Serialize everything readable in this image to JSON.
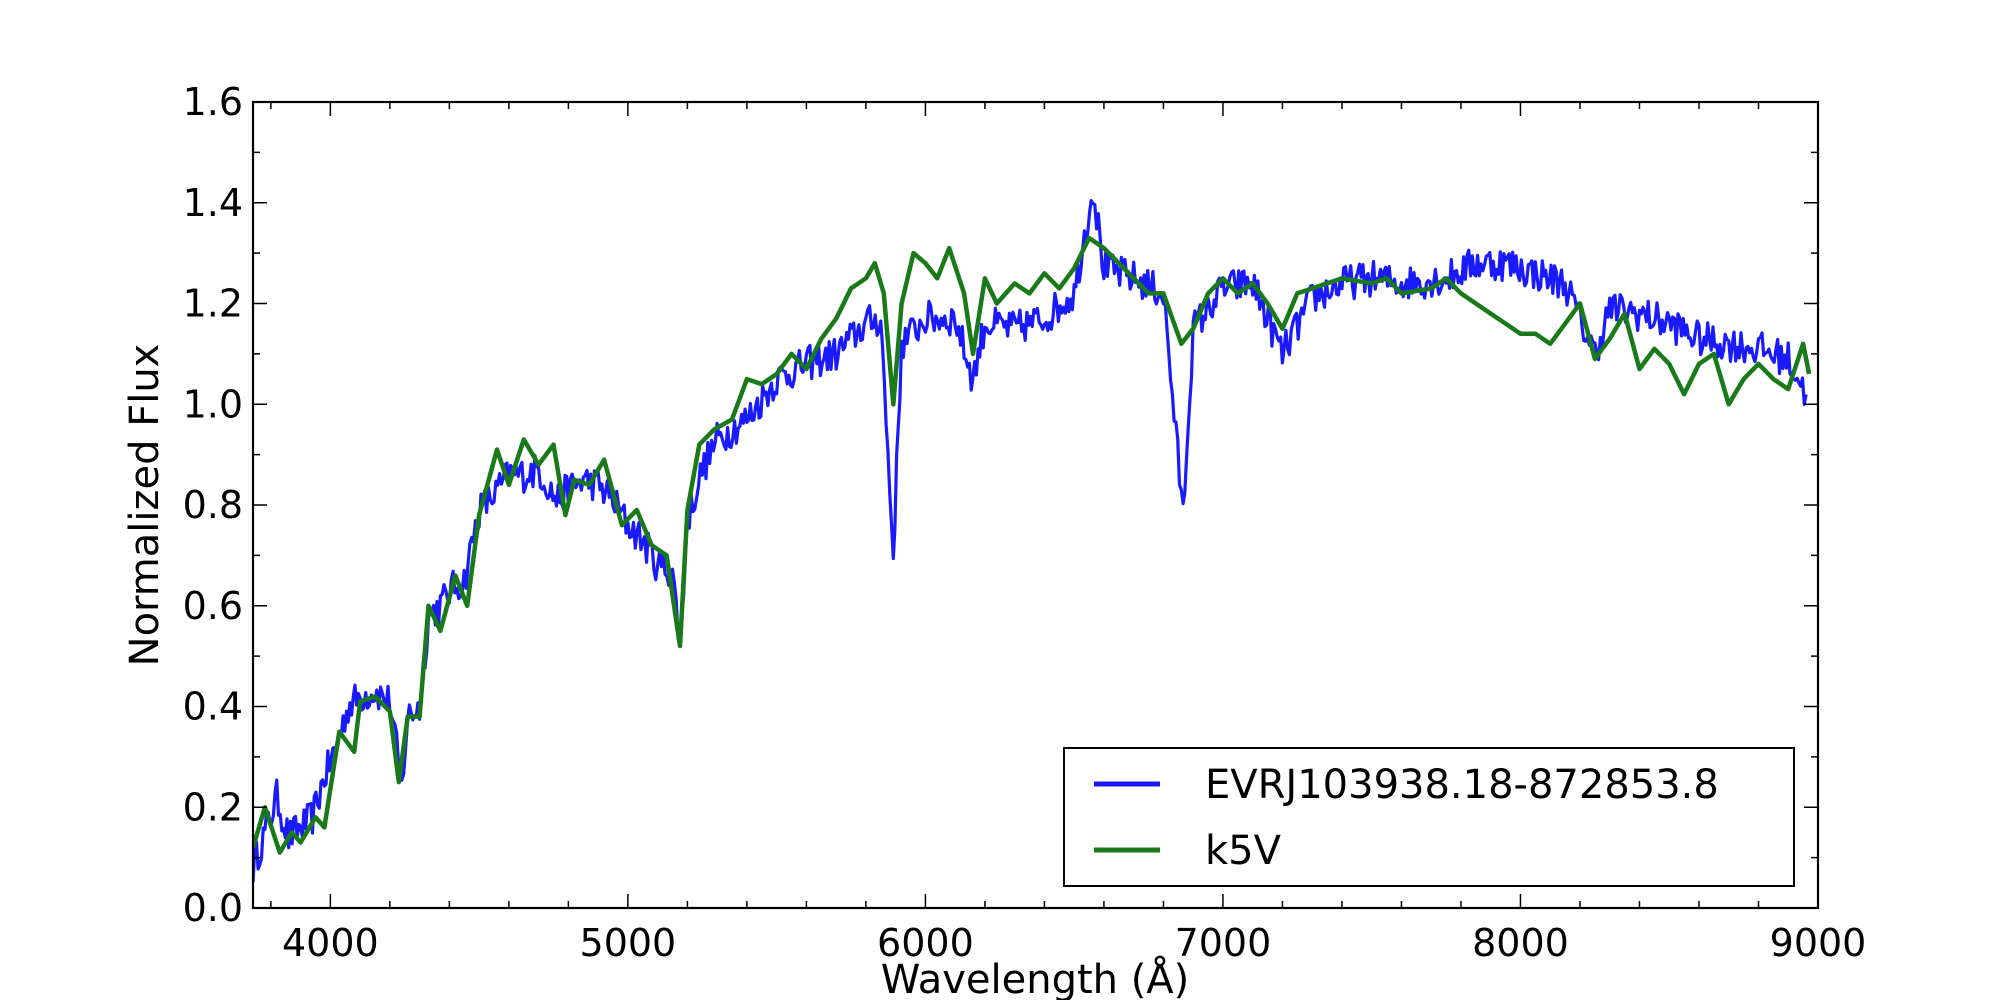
{
  "chart_data": {
    "type": "line",
    "title": "",
    "xlabel": "Wavelength (Å)",
    "ylabel": "Normalized Flux",
    "xlim": [
      3740,
      9000
    ],
    "ylim": [
      0.0,
      1.6
    ],
    "xticks": [
      4000,
      5000,
      6000,
      7000,
      8000,
      9000
    ],
    "yticks": [
      0.0,
      0.2,
      0.4,
      0.6,
      0.8,
      1.0,
      1.2,
      1.4,
      1.6
    ],
    "grid": false,
    "legend_position": "bottom-right",
    "series": [
      {
        "name": "EVRJ103938.18-872853.8",
        "color": "#1a1aff",
        "noise": true,
        "points": [
          [
            3740,
            0.08
          ],
          [
            3780,
            0.15
          ],
          [
            3820,
            0.22
          ],
          [
            3860,
            0.14
          ],
          [
            3900,
            0.16
          ],
          [
            3940,
            0.18
          ],
          [
            3980,
            0.26
          ],
          [
            4020,
            0.32
          ],
          [
            4060,
            0.4
          ],
          [
            4100,
            0.42
          ],
          [
            4150,
            0.43
          ],
          [
            4200,
            0.41
          ],
          [
            4240,
            0.24
          ],
          [
            4260,
            0.38
          ],
          [
            4300,
            0.4
          ],
          [
            4330,
            0.58
          ],
          [
            4370,
            0.6
          ],
          [
            4400,
            0.63
          ],
          [
            4450,
            0.65
          ],
          [
            4500,
            0.79
          ],
          [
            4550,
            0.82
          ],
          [
            4600,
            0.86
          ],
          [
            4650,
            0.86
          ],
          [
            4700,
            0.87
          ],
          [
            4760,
            0.81
          ],
          [
            4800,
            0.83
          ],
          [
            4850,
            0.85
          ],
          [
            4900,
            0.84
          ],
          [
            4950,
            0.81
          ],
          [
            5000,
            0.76
          ],
          [
            5050,
            0.73
          ],
          [
            5100,
            0.68
          ],
          [
            5150,
            0.67
          ],
          [
            5175,
            0.52
          ],
          [
            5200,
            0.77
          ],
          [
            5250,
            0.87
          ],
          [
            5300,
            0.93
          ],
          [
            5400,
            0.97
          ],
          [
            5500,
            1.05
          ],
          [
            5600,
            1.08
          ],
          [
            5700,
            1.1
          ],
          [
            5800,
            1.16
          ],
          [
            5850,
            1.17
          ],
          [
            5892,
            0.7
          ],
          [
            5920,
            1.12
          ],
          [
            6000,
            1.17
          ],
          [
            6100,
            1.17
          ],
          [
            6160,
            1.05
          ],
          [
            6200,
            1.16
          ],
          [
            6300,
            1.15
          ],
          [
            6400,
            1.17
          ],
          [
            6500,
            1.22
          ],
          [
            6563,
            1.43
          ],
          [
            6600,
            1.27
          ],
          [
            6700,
            1.25
          ],
          [
            6800,
            1.22
          ],
          [
            6866,
            0.78
          ],
          [
            6900,
            1.15
          ],
          [
            7000,
            1.23
          ],
          [
            7100,
            1.24
          ],
          [
            7200,
            1.1
          ],
          [
            7300,
            1.21
          ],
          [
            7400,
            1.24
          ],
          [
            7500,
            1.25
          ],
          [
            7600,
            1.24
          ],
          [
            7750,
            1.25
          ],
          [
            7850,
            1.28
          ],
          [
            7950,
            1.28
          ],
          [
            8050,
            1.26
          ],
          [
            8150,
            1.24
          ],
          [
            8200,
            1.17
          ],
          [
            8250,
            1.1
          ],
          [
            8300,
            1.19
          ],
          [
            8400,
            1.18
          ],
          [
            8500,
            1.16
          ],
          [
            8600,
            1.13
          ],
          [
            8700,
            1.12
          ],
          [
            8800,
            1.11
          ],
          [
            8900,
            1.09
          ],
          [
            8960,
            1.02
          ]
        ]
      },
      {
        "name": "k5V",
        "color": "#1a7a1a",
        "noise": false,
        "points": [
          [
            3740,
            0.12
          ],
          [
            3780,
            0.2
          ],
          [
            3830,
            0.11
          ],
          [
            3870,
            0.15
          ],
          [
            3900,
            0.13
          ],
          [
            3950,
            0.18
          ],
          [
            3980,
            0.16
          ],
          [
            4030,
            0.35
          ],
          [
            4080,
            0.31
          ],
          [
            4100,
            0.41
          ],
          [
            4150,
            0.42
          ],
          [
            4200,
            0.39
          ],
          [
            4230,
            0.25
          ],
          [
            4260,
            0.38
          ],
          [
            4300,
            0.38
          ],
          [
            4330,
            0.6
          ],
          [
            4370,
            0.55
          ],
          [
            4420,
            0.66
          ],
          [
            4460,
            0.6
          ],
          [
            4500,
            0.78
          ],
          [
            4560,
            0.91
          ],
          [
            4600,
            0.84
          ],
          [
            4650,
            0.93
          ],
          [
            4700,
            0.88
          ],
          [
            4750,
            0.92
          ],
          [
            4790,
            0.78
          ],
          [
            4820,
            0.85
          ],
          [
            4870,
            0.84
          ],
          [
            4920,
            0.89
          ],
          [
            4980,
            0.76
          ],
          [
            5030,
            0.79
          ],
          [
            5080,
            0.72
          ],
          [
            5130,
            0.7
          ],
          [
            5175,
            0.52
          ],
          [
            5200,
            0.79
          ],
          [
            5240,
            0.92
          ],
          [
            5290,
            0.95
          ],
          [
            5350,
            0.97
          ],
          [
            5400,
            1.05
          ],
          [
            5450,
            1.04
          ],
          [
            5500,
            1.06
          ],
          [
            5550,
            1.1
          ],
          [
            5600,
            1.07
          ],
          [
            5650,
            1.13
          ],
          [
            5700,
            1.17
          ],
          [
            5750,
            1.23
          ],
          [
            5800,
            1.25
          ],
          [
            5830,
            1.28
          ],
          [
            5860,
            1.22
          ],
          [
            5892,
            1.0
          ],
          [
            5920,
            1.2
          ],
          [
            5960,
            1.3
          ],
          [
            6000,
            1.28
          ],
          [
            6040,
            1.25
          ],
          [
            6080,
            1.31
          ],
          [
            6130,
            1.22
          ],
          [
            6160,
            1.1
          ],
          [
            6200,
            1.25
          ],
          [
            6240,
            1.2
          ],
          [
            6300,
            1.24
          ],
          [
            6350,
            1.22
          ],
          [
            6400,
            1.26
          ],
          [
            6450,
            1.23
          ],
          [
            6500,
            1.27
          ],
          [
            6550,
            1.33
          ],
          [
            6600,
            1.31
          ],
          [
            6650,
            1.28
          ],
          [
            6700,
            1.25
          ],
          [
            6750,
            1.22
          ],
          [
            6800,
            1.22
          ],
          [
            6860,
            1.12
          ],
          [
            6900,
            1.15
          ],
          [
            6950,
            1.22
          ],
          [
            7000,
            1.25
          ],
          [
            7050,
            1.22
          ],
          [
            7100,
            1.24
          ],
          [
            7150,
            1.2
          ],
          [
            7200,
            1.15
          ],
          [
            7250,
            1.22
          ],
          [
            7300,
            1.23
          ],
          [
            7400,
            1.25
          ],
          [
            7500,
            1.24
          ],
          [
            7550,
            1.25
          ],
          [
            7600,
            1.22
          ],
          [
            7700,
            1.23
          ],
          [
            7750,
            1.25
          ],
          [
            7800,
            1.22
          ],
          [
            7850,
            1.2
          ],
          [
            7900,
            1.18
          ],
          [
            7950,
            1.16
          ],
          [
            8000,
            1.14
          ],
          [
            8050,
            1.14
          ],
          [
            8100,
            1.12
          ],
          [
            8150,
            1.16
          ],
          [
            8200,
            1.2
          ],
          [
            8250,
            1.09
          ],
          [
            8300,
            1.13
          ],
          [
            8350,
            1.18
          ],
          [
            8400,
            1.07
          ],
          [
            8450,
            1.11
          ],
          [
            8500,
            1.08
          ],
          [
            8550,
            1.02
          ],
          [
            8600,
            1.08
          ],
          [
            8650,
            1.1
          ],
          [
            8700,
            1.0
          ],
          [
            8750,
            1.05
          ],
          [
            8800,
            1.08
          ],
          [
            8850,
            1.05
          ],
          [
            8900,
            1.03
          ],
          [
            8950,
            1.12
          ],
          [
            8970,
            1.06
          ]
        ]
      }
    ]
  }
}
